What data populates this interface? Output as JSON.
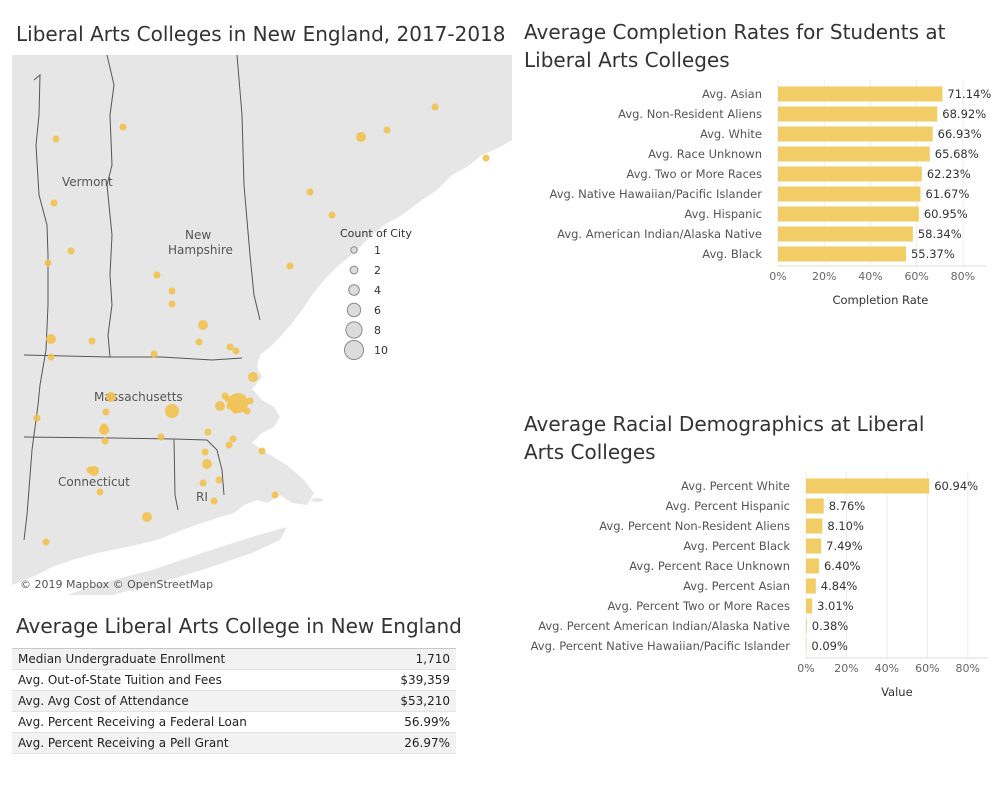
{
  "map": {
    "title": "Liberal Arts Colleges in New England, 2017-2018",
    "credit": "© 2019 Mapbox © OpenStreetMap",
    "state_labels": [
      "Vermont",
      "New",
      "Hampshire",
      "Massachusetts",
      "Connecticut",
      "RI"
    ],
    "legend": {
      "title": "Count of City",
      "sizes": [
        1,
        2,
        4,
        6,
        8,
        10
      ]
    },
    "colors": {
      "land": "#e6e6e6",
      "water": "#ffffff",
      "point": "#f2c14e",
      "border": "#555555"
    }
  },
  "summary": {
    "title": "Average Liberal Arts College in New England",
    "rows": [
      {
        "label": "Median Undergraduate Enrollment",
        "value": "1,710"
      },
      {
        "label": "Avg. Out-of-State Tuition and Fees",
        "value": "$39,359"
      },
      {
        "label": "Avg. Avg Cost of Attendance",
        "value": "$53,210"
      },
      {
        "label": "Avg. Percent Receiving a Federal Loan",
        "value": "56.99%"
      },
      {
        "label": "Avg. Percent Receiving a Pell Grant",
        "value": "26.97%"
      }
    ]
  },
  "chart_data": [
    {
      "type": "bar",
      "orientation": "horizontal",
      "title": "Average Completion Rates for Students at Liberal Arts Colleges",
      "xlabel": "Completion Rate",
      "ylabel": "",
      "xlim": [
        0,
        90
      ],
      "ticks": [
        "0%",
        "20%",
        "40%",
        "60%",
        "80%"
      ],
      "grid": true,
      "bar_color": "#f2cc64",
      "categories": [
        "Avg. Asian",
        "Avg. Non-Resident Aliens",
        "Avg. White",
        "Avg. Race Unknown",
        "Avg. Two or More Races",
        "Avg. Native Hawaiian/Pacific Islander",
        "Avg. Hispanic",
        "Avg. American Indian/Alaska Native",
        "Avg. Black"
      ],
      "values": [
        71.14,
        68.92,
        66.93,
        65.68,
        62.23,
        61.67,
        60.95,
        58.34,
        55.37
      ],
      "data_labels": [
        "71.14%",
        "68.92%",
        "66.93%",
        "65.68%",
        "62.23%",
        "61.67%",
        "60.95%",
        "58.34%",
        "55.37%"
      ]
    },
    {
      "type": "bar",
      "orientation": "horizontal",
      "title": "Average Racial Demographics at Liberal Arts Colleges",
      "xlabel": "Value",
      "ylabel": "",
      "xlim": [
        0,
        90
      ],
      "ticks": [
        "0%",
        "20%",
        "40%",
        "60%",
        "80%"
      ],
      "grid": true,
      "bar_color": "#f2cc64",
      "categories": [
        "Avg. Percent White",
        "Avg. Percent Hispanic",
        "Avg. Percent Non-Resident Aliens",
        "Avg. Percent Black",
        "Avg. Percent Race Unknown",
        "Avg. Percent Asian",
        "Avg. Percent Two or More Races",
        "Avg. Percent American Indian/Alaska Native",
        "Avg. Percent Native Hawaiian/Pacific Islander"
      ],
      "values": [
        60.94,
        8.76,
        8.1,
        7.49,
        6.4,
        4.84,
        3.01,
        0.38,
        0.09
      ],
      "data_labels": [
        "60.94%",
        "8.76%",
        "8.10%",
        "7.49%",
        "6.40%",
        "4.84%",
        "3.01%",
        "0.38%",
        "0.09%"
      ]
    }
  ]
}
